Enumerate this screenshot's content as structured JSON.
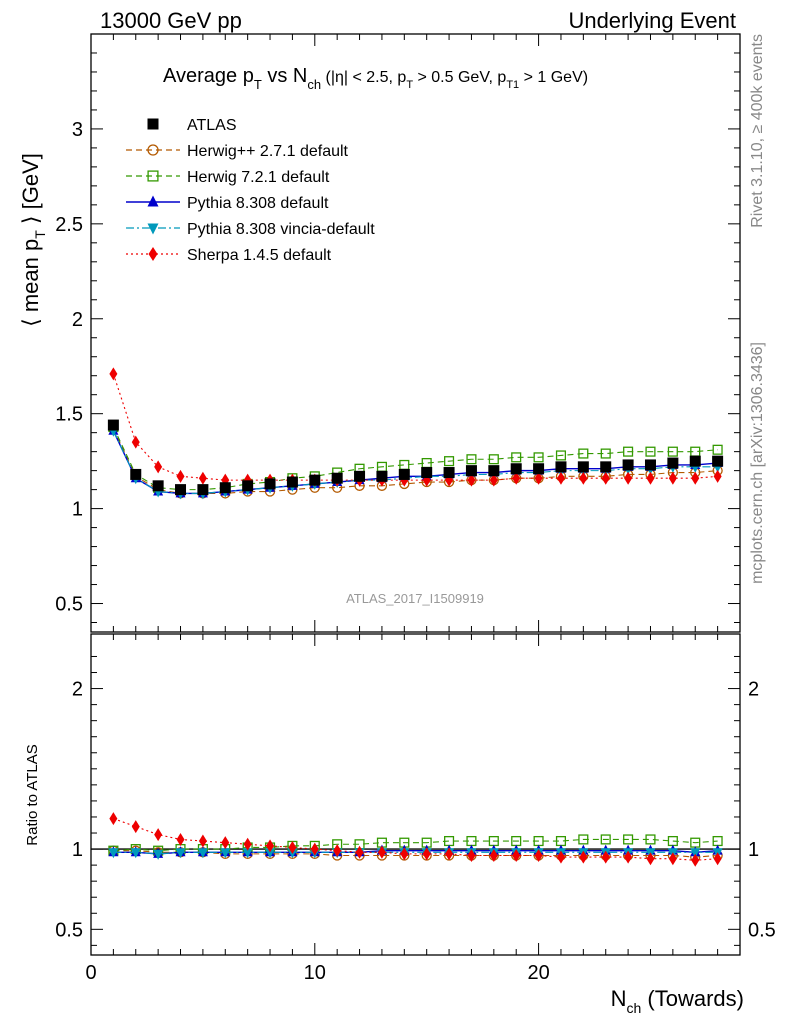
{
  "header": {
    "left": "13000 GeV pp",
    "right": "Underlying Event"
  },
  "title_parts": {
    "main": "Average p",
    "sub_T": "T",
    "vs": " vs N",
    "sub_ch": "ch",
    "cuts_a": " (|η| < 2.5, p",
    "cuts_b": " > 0.5 GeV, p",
    "sub_T1": "T1",
    "cuts_c": " > 1 GeV)"
  },
  "ylabel_parts": {
    "a": "⟨ mean p",
    "sub": "T",
    "b": " ⟩ [GeV]"
  },
  "xlabel_parts": {
    "a": "N",
    "sub": "ch",
    "b": " (Towards)"
  },
  "ratio_ylabel": "Ratio to ATLAS",
  "analysis_label": "ATLAS_2017_I1509919",
  "side_labels": {
    "rivet": "Rivet 3.1.10, ≥ 400k events",
    "mcplots": "mcplots.cern.ch [arXiv:1306.3436]"
  },
  "colors": {
    "atlas": "#000000",
    "herwigpp": "#b35900",
    "herwig7": "#339900",
    "pythia": "#0000cc",
    "vincia": "#0099bb",
    "sherpa": "#ee0000"
  },
  "chart_data": [
    {
      "type": "scatter",
      "panel": "main",
      "xlim": [
        0,
        29
      ],
      "ylim": [
        0.35,
        3.5
      ],
      "yticks": [
        0.5,
        1,
        1.5,
        2,
        2.5,
        3
      ],
      "ytick_labels": [
        "0.5",
        "1",
        "1.5",
        "2",
        "2.5",
        "3"
      ],
      "legend_position": "top-left",
      "x": [
        1,
        2,
        3,
        4,
        5,
        6,
        7,
        8,
        9,
        10,
        11,
        12,
        13,
        14,
        15,
        16,
        17,
        18,
        19,
        20,
        21,
        22,
        23,
        24,
        25,
        26,
        27,
        28
      ],
      "series": [
        {
          "name": "ATLAS",
          "key": "atlas",
          "marker": "square-filled",
          "line": "none",
          "values": [
            1.44,
            1.18,
            1.12,
            1.1,
            1.1,
            1.11,
            1.12,
            1.13,
            1.14,
            1.15,
            1.16,
            1.17,
            1.17,
            1.18,
            1.19,
            1.19,
            1.2,
            1.2,
            1.21,
            1.21,
            1.22,
            1.22,
            1.22,
            1.23,
            1.23,
            1.24,
            1.25,
            1.25
          ]
        },
        {
          "name": "Herwig++ 2.7.1 default",
          "key": "herwigpp",
          "marker": "circle-open",
          "line": "dashed",
          "values": [
            1.42,
            1.17,
            1.1,
            1.08,
            1.08,
            1.08,
            1.09,
            1.09,
            1.1,
            1.11,
            1.11,
            1.12,
            1.12,
            1.13,
            1.14,
            1.14,
            1.15,
            1.15,
            1.16,
            1.16,
            1.17,
            1.17,
            1.17,
            1.18,
            1.18,
            1.19,
            1.19,
            1.2
          ]
        },
        {
          "name": "Herwig 7.2.1 default",
          "key": "herwig7",
          "marker": "square-open",
          "line": "dashed",
          "values": [
            1.43,
            1.18,
            1.11,
            1.1,
            1.1,
            1.11,
            1.13,
            1.14,
            1.16,
            1.17,
            1.19,
            1.21,
            1.22,
            1.23,
            1.24,
            1.25,
            1.26,
            1.26,
            1.27,
            1.27,
            1.28,
            1.29,
            1.29,
            1.3,
            1.3,
            1.3,
            1.3,
            1.31
          ]
        },
        {
          "name": "Pythia 8.308 default",
          "key": "pythia",
          "marker": "triangle-up",
          "line": "solid",
          "values": [
            1.41,
            1.16,
            1.09,
            1.08,
            1.08,
            1.09,
            1.1,
            1.11,
            1.12,
            1.13,
            1.14,
            1.15,
            1.16,
            1.17,
            1.17,
            1.18,
            1.19,
            1.19,
            1.2,
            1.2,
            1.21,
            1.21,
            1.21,
            1.22,
            1.22,
            1.23,
            1.23,
            1.24
          ]
        },
        {
          "name": "Pythia 8.308 vincia-default",
          "key": "vincia",
          "marker": "triangle-down",
          "line": "dashdot",
          "values": [
            1.41,
            1.16,
            1.09,
            1.08,
            1.08,
            1.09,
            1.1,
            1.11,
            1.12,
            1.13,
            1.14,
            1.15,
            1.15,
            1.16,
            1.17,
            1.17,
            1.18,
            1.18,
            1.19,
            1.19,
            1.2,
            1.2,
            1.2,
            1.21,
            1.21,
            1.22,
            1.22,
            1.22
          ]
        },
        {
          "name": "Sherpa 1.4.5 default",
          "key": "sherpa",
          "marker": "diamond",
          "line": "dotted",
          "values": [
            1.71,
            1.35,
            1.22,
            1.17,
            1.16,
            1.15,
            1.15,
            1.15,
            1.15,
            1.15,
            1.15,
            1.15,
            1.15,
            1.15,
            1.15,
            1.15,
            1.15,
            1.15,
            1.16,
            1.16,
            1.16,
            1.16,
            1.16,
            1.16,
            1.16,
            1.16,
            1.16,
            1.17
          ]
        }
      ]
    },
    {
      "type": "scatter",
      "panel": "ratio",
      "xlabel": "N_ch (Towards)",
      "ylabel": "Ratio to ATLAS",
      "xlim": [
        0,
        29
      ],
      "ylim": [
        0.34,
        2.34
      ],
      "xticks": [
        0,
        10,
        20
      ],
      "xtick_labels": [
        "0",
        "10",
        "20"
      ],
      "yticks": [
        0.5,
        1,
        2
      ],
      "ytick_labels": [
        "0.5",
        "1",
        "2"
      ],
      "reference_line": 1.0,
      "x": [
        1,
        2,
        3,
        4,
        5,
        6,
        7,
        8,
        9,
        10,
        11,
        12,
        13,
        14,
        15,
        16,
        17,
        18,
        19,
        20,
        21,
        22,
        23,
        24,
        25,
        26,
        27,
        28
      ],
      "series": [
        {
          "name": "Herwig++ 2.7.1 default",
          "key": "herwigpp",
          "values": [
            0.99,
            0.99,
            0.98,
            0.98,
            0.98,
            0.97,
            0.97,
            0.97,
            0.97,
            0.97,
            0.96,
            0.96,
            0.96,
            0.96,
            0.96,
            0.96,
            0.96,
            0.96,
            0.96,
            0.96,
            0.96,
            0.96,
            0.96,
            0.96,
            0.96,
            0.96,
            0.95,
            0.96
          ]
        },
        {
          "name": "Herwig 7.2.1 default",
          "key": "herwig7",
          "values": [
            0.99,
            1.0,
            0.99,
            1.0,
            1.0,
            1.0,
            1.01,
            1.01,
            1.02,
            1.02,
            1.03,
            1.03,
            1.04,
            1.04,
            1.04,
            1.05,
            1.05,
            1.05,
            1.05,
            1.05,
            1.05,
            1.06,
            1.06,
            1.06,
            1.06,
            1.05,
            1.04,
            1.05
          ]
        },
        {
          "name": "Pythia 8.308 default",
          "key": "pythia",
          "values": [
            0.98,
            0.98,
            0.97,
            0.98,
            0.98,
            0.98,
            0.98,
            0.98,
            0.98,
            0.98,
            0.98,
            0.98,
            0.99,
            0.99,
            0.99,
            0.99,
            0.99,
            0.99,
            0.99,
            0.99,
            0.99,
            0.99,
            0.99,
            0.99,
            0.99,
            0.99,
            0.98,
            0.99
          ]
        },
        {
          "name": "Pythia 8.308 vincia-default",
          "key": "vincia",
          "values": [
            0.98,
            0.98,
            0.97,
            0.98,
            0.98,
            0.98,
            0.98,
            0.98,
            0.98,
            0.98,
            0.98,
            0.98,
            0.98,
            0.98,
            0.98,
            0.98,
            0.98,
            0.98,
            0.98,
            0.98,
            0.98,
            0.98,
            0.98,
            0.98,
            0.98,
            0.98,
            0.98,
            0.98
          ]
        },
        {
          "name": "Sherpa 1.4.5 default",
          "key": "sherpa",
          "values": [
            1.19,
            1.14,
            1.09,
            1.06,
            1.05,
            1.04,
            1.03,
            1.02,
            1.01,
            1.0,
            0.99,
            0.98,
            0.98,
            0.97,
            0.97,
            0.97,
            0.96,
            0.96,
            0.96,
            0.96,
            0.95,
            0.95,
            0.95,
            0.95,
            0.94,
            0.94,
            0.93,
            0.94
          ]
        }
      ]
    }
  ]
}
